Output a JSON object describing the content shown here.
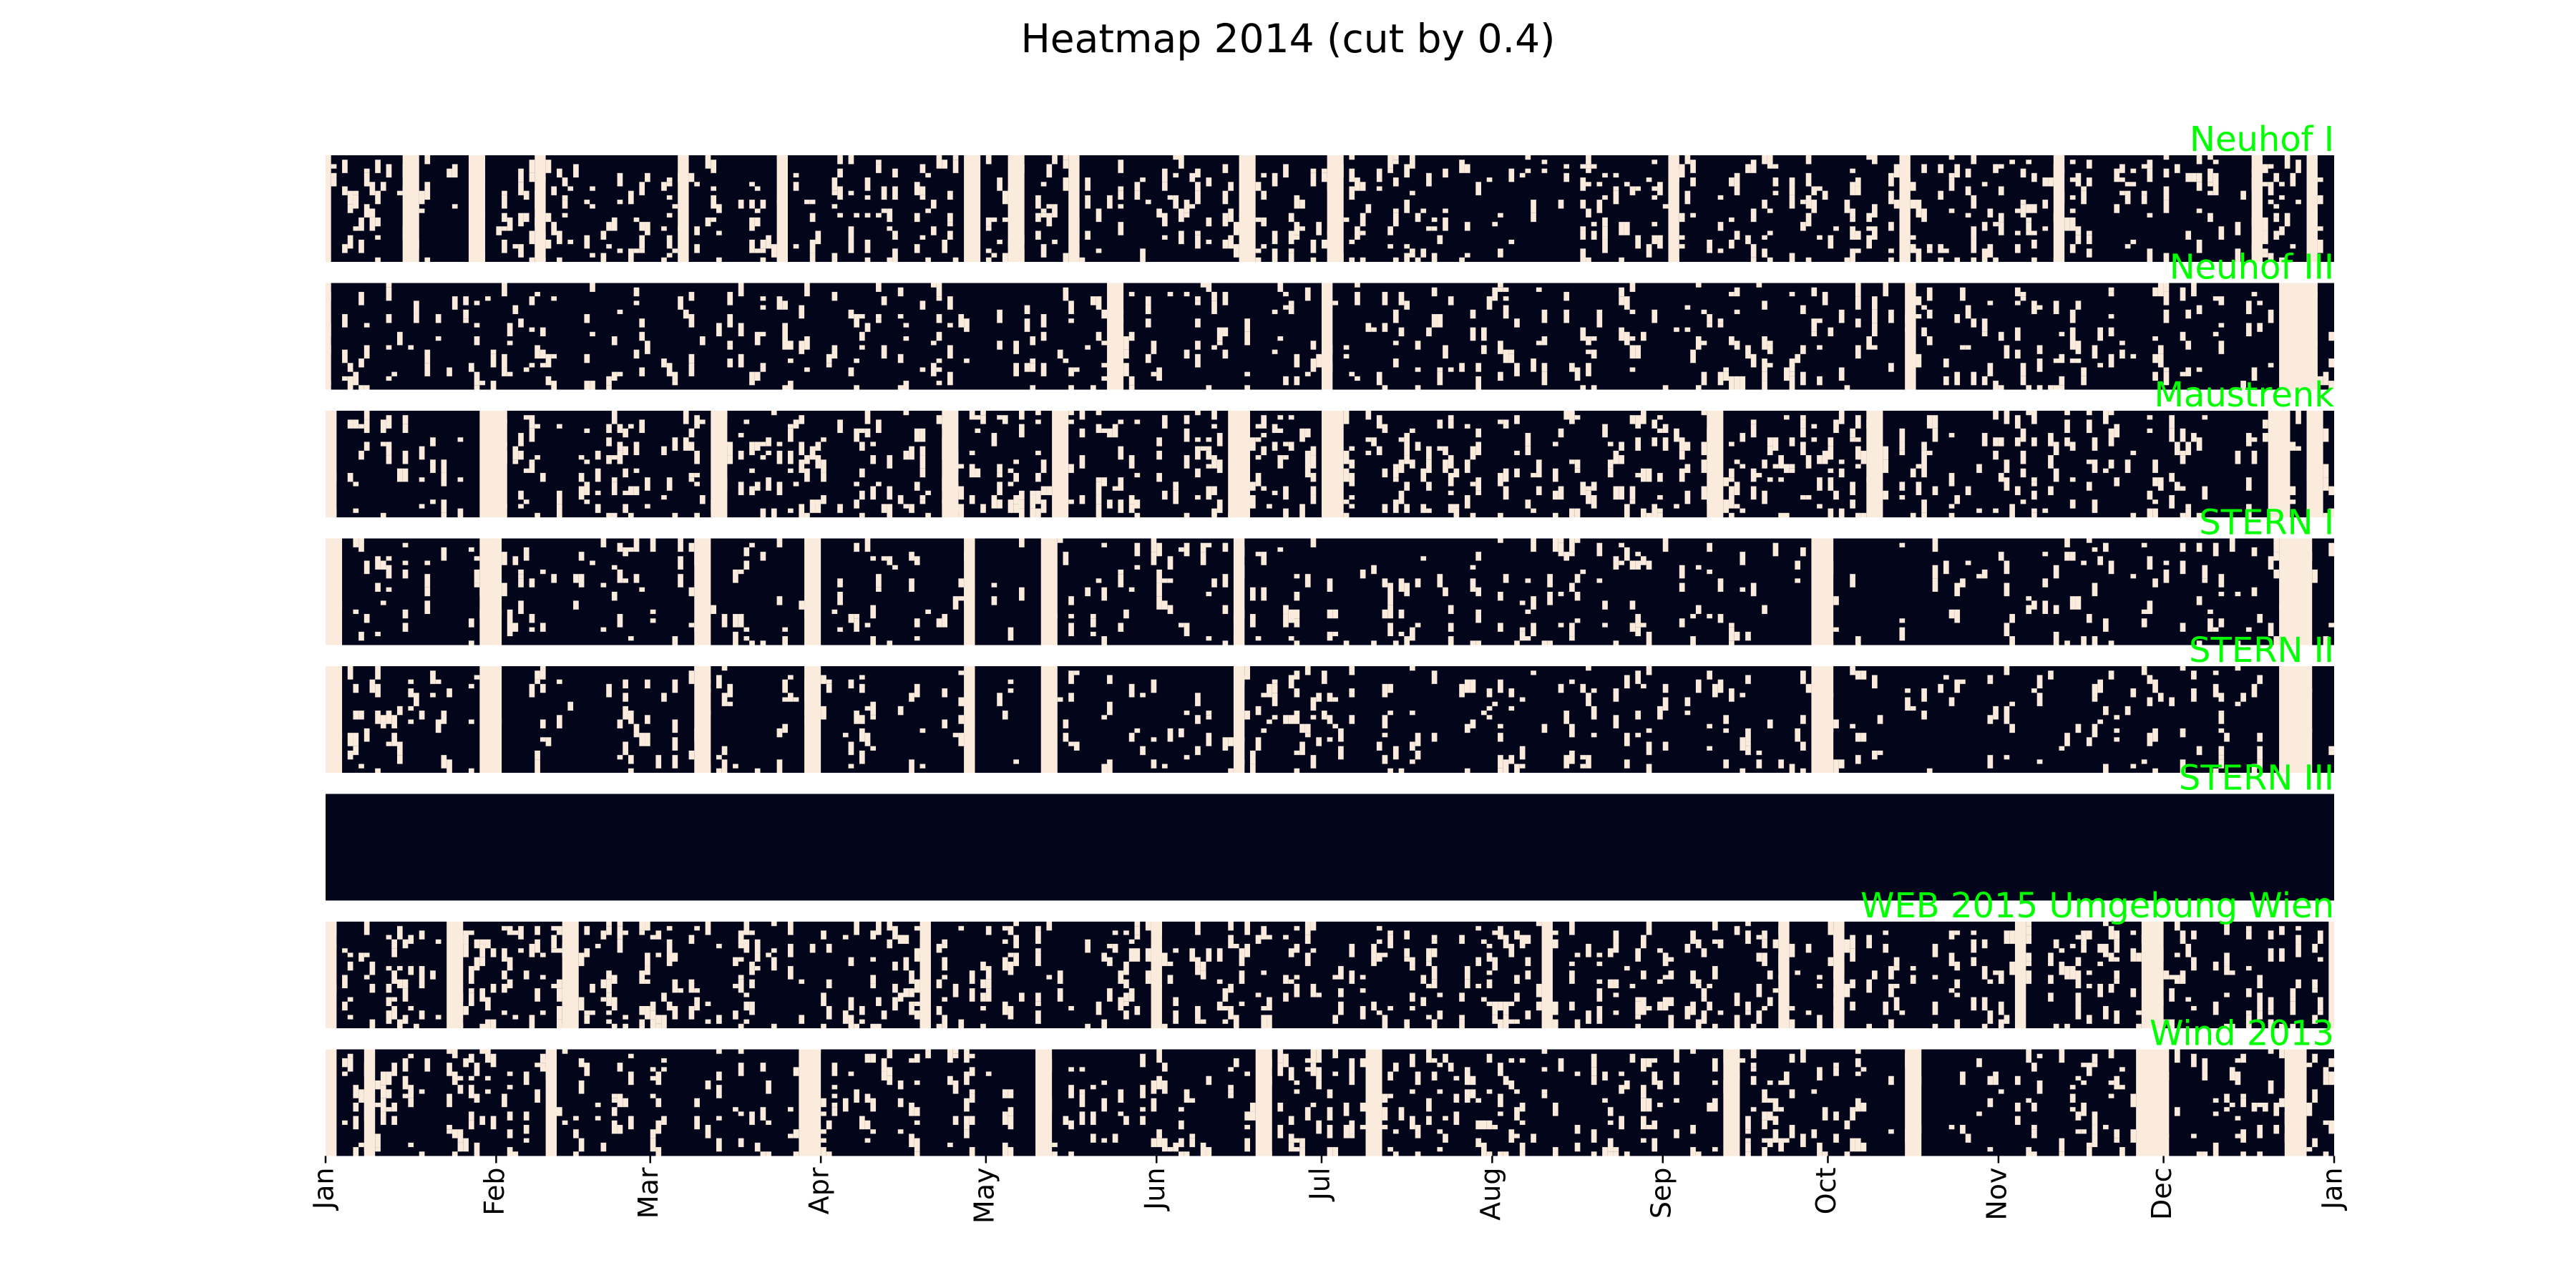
{
  "chart_data": {
    "type": "heatmap",
    "title": "Heatmap 2014 (cut by 0.4)",
    "xlabel": "",
    "ylabel": "",
    "x_axis": {
      "range": [
        "2014-01-01",
        "2015-01-01"
      ],
      "tick_labels": [
        "Jan",
        "Feb",
        "Mar",
        "Apr",
        "May",
        "Jun",
        "Jul",
        "Aug",
        "Sep",
        "Oct",
        "Nov",
        "Dec",
        "Jan"
      ],
      "tick_dates": [
        "2014-01-01",
        "2014-02-01",
        "2014-03-01",
        "2014-04-01",
        "2014-05-01",
        "2014-06-01",
        "2014-07-01",
        "2014-08-01",
        "2014-09-01",
        "2014-10-01",
        "2014-11-01",
        "2014-12-01",
        "2015-01-01"
      ]
    },
    "values_domain": [
      0,
      1
    ],
    "colors": {
      "low": "#03051a",
      "high": "#faebdd",
      "row_label": "#00ff00"
    },
    "rows": [
      {
        "name": "Neuhof I",
        "high_periods": [
          [
            "2014-01-01",
            "2014-01-02"
          ],
          [
            "2014-01-15",
            "2014-01-18"
          ],
          [
            "2014-01-27",
            "2014-01-30"
          ],
          [
            "2014-02-08",
            "2014-02-10"
          ],
          [
            "2014-03-06",
            "2014-03-08"
          ],
          [
            "2014-03-24",
            "2014-03-26"
          ],
          [
            "2014-04-27",
            "2014-04-30"
          ],
          [
            "2014-05-05",
            "2014-05-08"
          ],
          [
            "2014-05-16",
            "2014-05-18"
          ],
          [
            "2014-06-16",
            "2014-06-19"
          ],
          [
            "2014-07-02",
            "2014-07-05"
          ],
          [
            "2014-09-02",
            "2014-09-04"
          ],
          [
            "2014-10-14",
            "2014-10-16"
          ],
          [
            "2014-11-11",
            "2014-11-13"
          ],
          [
            "2014-12-17",
            "2014-12-19"
          ],
          [
            "2014-12-27",
            "2014-12-29"
          ]
        ],
        "scatter_density": 0.13
      },
      {
        "name": "Neuhof III",
        "high_periods": [
          [
            "2014-01-01",
            "2014-01-02"
          ],
          [
            "2014-05-23",
            "2014-05-26"
          ],
          [
            "2014-07-01",
            "2014-07-03"
          ],
          [
            "2014-10-15",
            "2014-10-17"
          ],
          [
            "2014-12-22",
            "2014-12-29"
          ]
        ],
        "scatter_density": 0.09
      },
      {
        "name": "Maustrenk",
        "high_periods": [
          [
            "2014-01-01",
            "2014-01-03"
          ],
          [
            "2014-01-29",
            "2014-02-03"
          ],
          [
            "2014-03-12",
            "2014-03-15"
          ],
          [
            "2014-04-23",
            "2014-04-26"
          ],
          [
            "2014-05-13",
            "2014-05-16"
          ],
          [
            "2014-06-14",
            "2014-06-18"
          ],
          [
            "2014-07-01",
            "2014-07-05"
          ],
          [
            "2014-09-09",
            "2014-09-12"
          ],
          [
            "2014-10-08",
            "2014-10-11"
          ],
          [
            "2014-12-20",
            "2014-12-24"
          ],
          [
            "2014-12-27",
            "2014-12-30"
          ]
        ],
        "scatter_density": 0.12
      },
      {
        "name": "STERN I",
        "high_periods": [
          [
            "2014-01-01",
            "2014-01-04"
          ],
          [
            "2014-01-29",
            "2014-02-02"
          ],
          [
            "2014-03-09",
            "2014-03-12"
          ],
          [
            "2014-03-29",
            "2014-04-01"
          ],
          [
            "2014-04-27",
            "2014-04-29"
          ],
          [
            "2014-05-11",
            "2014-05-14"
          ],
          [
            "2014-06-15",
            "2014-06-17"
          ],
          [
            "2014-09-28",
            "2014-10-02"
          ],
          [
            "2014-12-22",
            "2014-12-28"
          ]
        ],
        "scatter_density": 0.08
      },
      {
        "name": "STERN II",
        "high_periods": [
          [
            "2014-01-01",
            "2014-01-04"
          ],
          [
            "2014-01-29",
            "2014-02-02"
          ],
          [
            "2014-03-09",
            "2014-03-12"
          ],
          [
            "2014-03-29",
            "2014-04-01"
          ],
          [
            "2014-04-27",
            "2014-04-29"
          ],
          [
            "2014-05-11",
            "2014-05-14"
          ],
          [
            "2014-06-15",
            "2014-06-17"
          ],
          [
            "2014-09-28",
            "2014-10-02"
          ],
          [
            "2014-12-22",
            "2014-12-28"
          ]
        ],
        "scatter_density": 0.08
      },
      {
        "name": "STERN III",
        "high_periods": [],
        "scatter_density": 0.0
      },
      {
        "name": "WEB 2015 Umgebung Wien",
        "high_periods": [
          [
            "2014-01-01",
            "2014-01-03"
          ],
          [
            "2014-01-23",
            "2014-01-26"
          ],
          [
            "2014-02-13",
            "2014-02-16"
          ],
          [
            "2014-04-19",
            "2014-04-21"
          ],
          [
            "2014-05-31",
            "2014-06-02"
          ],
          [
            "2014-08-10",
            "2014-08-12"
          ],
          [
            "2014-09-22",
            "2014-09-24"
          ],
          [
            "2014-10-02",
            "2014-10-04"
          ],
          [
            "2014-11-04",
            "2014-11-06"
          ],
          [
            "2014-11-27",
            "2014-12-01"
          ],
          [
            "2014-12-31",
            "2015-01-01"
          ]
        ],
        "scatter_density": 0.14
      },
      {
        "name": "Wind 2013",
        "high_periods": [
          [
            "2014-01-01",
            "2014-01-03"
          ],
          [
            "2014-01-08",
            "2014-01-10"
          ],
          [
            "2014-02-10",
            "2014-02-12"
          ],
          [
            "2014-03-28",
            "2014-04-01"
          ],
          [
            "2014-05-10",
            "2014-05-13"
          ],
          [
            "2014-06-19",
            "2014-06-22"
          ],
          [
            "2014-07-09",
            "2014-07-12"
          ],
          [
            "2014-09-12",
            "2014-09-15"
          ],
          [
            "2014-10-15",
            "2014-10-18"
          ],
          [
            "2014-11-26",
            "2014-12-02"
          ],
          [
            "2014-12-23",
            "2014-12-27"
          ]
        ],
        "scatter_density": 0.12
      }
    ]
  }
}
